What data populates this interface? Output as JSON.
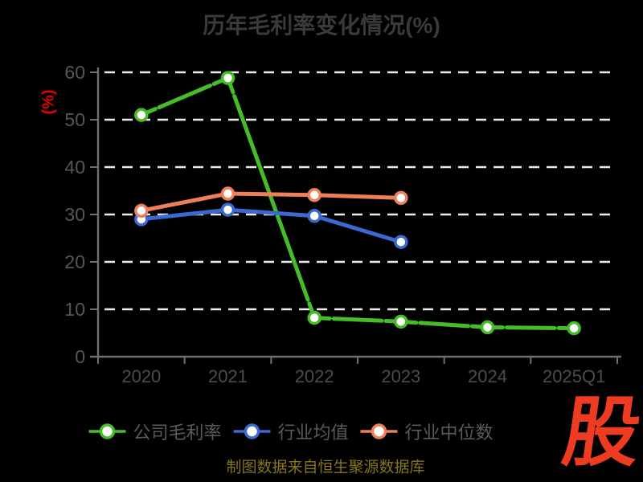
{
  "header": {
    "title": "历年毛利率变化情况(%)"
  },
  "chart_data": {
    "type": "line",
    "title": "历年毛利率变化情况(%)",
    "xlabel": "",
    "ylabel": "(%)",
    "categories": [
      "2020",
      "2021",
      "2022",
      "2023",
      "2024",
      "2025Q1"
    ],
    "yticks": [
      0,
      10,
      20,
      30,
      40,
      50,
      60
    ],
    "ylim": [
      0,
      60
    ],
    "grid": "horizontal-dashed",
    "legend_position": "bottom",
    "marker": "circle-white-fill",
    "series": [
      {
        "id": "company-gross-margin",
        "name": "公司毛利率",
        "color": "#45bc28",
        "line_style": "long-dash",
        "values": [
          51.0,
          58.8,
          8.2,
          7.4,
          6.2,
          6.0
        ]
      },
      {
        "id": "industry-average",
        "name": "行业均值",
        "color": "#3a6ad1",
        "line_style": "solid",
        "values": [
          29.0,
          31.0,
          29.7,
          24.2,
          null,
          null
        ]
      },
      {
        "id": "industry-median",
        "name": "行业中位数",
        "color": "#ef7f58",
        "line_style": "solid",
        "values": [
          30.8,
          34.4,
          34.1,
          33.5,
          null,
          null
        ]
      }
    ],
    "style": {
      "background": "#000000",
      "grid_color": "#ececec",
      "axis_color": "#6f6f6f",
      "ytick_label_color": "#565656",
      "xtick_label_color": "#4c4c4c",
      "title_color": "#3a3a3a",
      "ylabel_color": "#e60000",
      "legend_text_color": "#5a5a5a",
      "marker_fill": "#ffffff"
    }
  },
  "footer": {
    "caption": "制图数据来自恒生聚源数据库"
  },
  "logo": {
    "text": "股",
    "color": "#ef3b22"
  }
}
